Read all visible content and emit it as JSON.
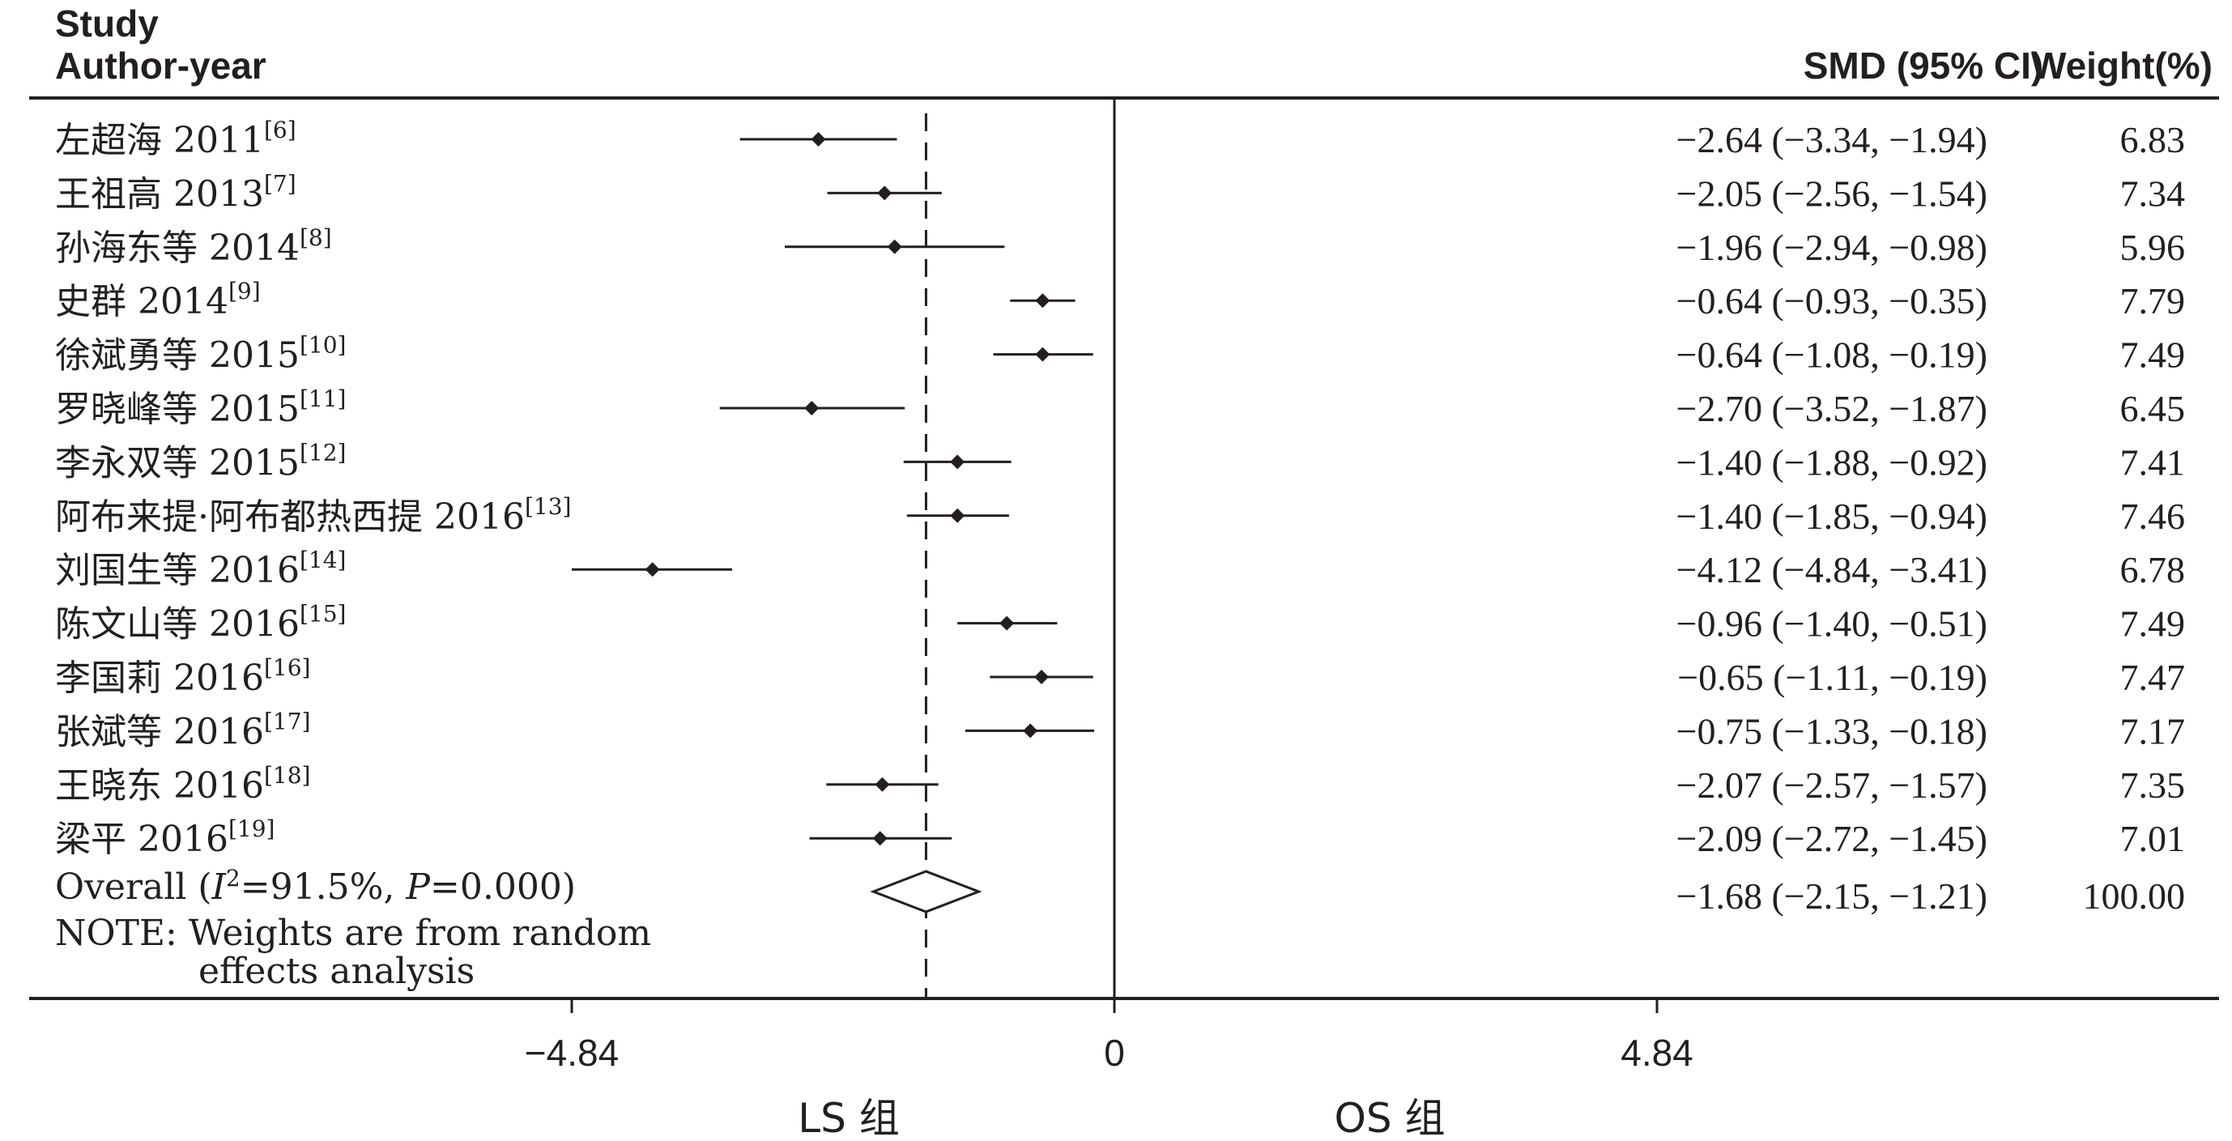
{
  "chart_data": {
    "type": "forest",
    "header": {
      "study_line1": "Study",
      "study_line2": "Author-year",
      "effect_col": "SMD (95% CI)",
      "weight_col": "Weight(%)"
    },
    "studies": [
      {
        "label": "左超海 2011",
        "ref": "[6]",
        "smd": -2.64,
        "lo": -3.34,
        "hi": -1.94,
        "ci_text": "−2.64 (−3.34, −1.94)",
        "weight": "6.83"
      },
      {
        "label": "王祖高 2013",
        "ref": "[7]",
        "smd": -2.05,
        "lo": -2.56,
        "hi": -1.54,
        "ci_text": "−2.05 (−2.56, −1.54)",
        "weight": "7.34"
      },
      {
        "label": "孙海东等 2014",
        "ref": "[8]",
        "smd": -1.96,
        "lo": -2.94,
        "hi": -0.98,
        "ci_text": "−1.96 (−2.94, −0.98)",
        "weight": "5.96"
      },
      {
        "label": "史群 2014",
        "ref": "[9]",
        "smd": -0.64,
        "lo": -0.93,
        "hi": -0.35,
        "ci_text": "−0.64 (−0.93, −0.35)",
        "weight": "7.79"
      },
      {
        "label": "徐斌勇等 2015",
        "ref": "[10]",
        "smd": -0.64,
        "lo": -1.08,
        "hi": -0.19,
        "ci_text": "−0.64 (−1.08, −0.19)",
        "weight": "7.49"
      },
      {
        "label": "罗晓峰等 2015",
        "ref": "[11]",
        "smd": -2.7,
        "lo": -3.52,
        "hi": -1.87,
        "ci_text": "−2.70 (−3.52, −1.87)",
        "weight": "6.45"
      },
      {
        "label": "李永双等 2015",
        "ref": "[12]",
        "smd": -1.4,
        "lo": -1.88,
        "hi": -0.92,
        "ci_text": "−1.40 (−1.88, −0.92)",
        "weight": "7.41"
      },
      {
        "label": "阿布来提·阿布都热西提 2016",
        "ref": "[13]",
        "smd": -1.4,
        "lo": -1.85,
        "hi": -0.94,
        "ci_text": "−1.40 (−1.85, −0.94)",
        "weight": "7.46"
      },
      {
        "label": "刘国生等 2016",
        "ref": "[14]",
        "smd": -4.12,
        "lo": -4.84,
        "hi": -3.41,
        "ci_text": "−4.12 (−4.84, −3.41)",
        "weight": "6.78"
      },
      {
        "label": "陈文山等 2016",
        "ref": "[15]",
        "smd": -0.96,
        "lo": -1.4,
        "hi": -0.51,
        "ci_text": "−0.96 (−1.40, −0.51)",
        "weight": "7.49"
      },
      {
        "label": "李国莉 2016",
        "ref": "[16]",
        "smd": -0.65,
        "lo": -1.11,
        "hi": -0.19,
        "ci_text": "−0.65 (−1.11, −0.19)",
        "weight": "7.47"
      },
      {
        "label": "张斌等 2016",
        "ref": "[17]",
        "smd": -0.75,
        "lo": -1.33,
        "hi": -0.18,
        "ci_text": "−0.75 (−1.33, −0.18)",
        "weight": "7.17"
      },
      {
        "label": "王晓东 2016",
        "ref": "[18]",
        "smd": -2.07,
        "lo": -2.57,
        "hi": -1.57,
        "ci_text": "−2.07 (−2.57, −1.57)",
        "weight": "7.35"
      },
      {
        "label": "梁平 2016",
        "ref": "[19]",
        "smd": -2.09,
        "lo": -2.72,
        "hi": -1.45,
        "ci_text": "−2.09 (−2.72, −1.45)",
        "weight": "7.01"
      }
    ],
    "overall": {
      "label_prefix": "Overall  (",
      "i2_symbol": "I",
      "i2_exp": "2",
      "i2_value": "=91.5%, ",
      "p_symbol": "P",
      "p_value": "=0.000)",
      "smd": -1.68,
      "lo": -2.15,
      "hi": -1.21,
      "ci_text": "−1.68 (−2.15, −1.21)",
      "weight": "100.00"
    },
    "note_line1": "NOTE: Weights are from random",
    "note_line2": "effects analysis",
    "x_axis": {
      "range": [
        -4.84,
        4.84
      ],
      "ticks": [
        {
          "value": -4.84,
          "label": "−4.84"
        },
        {
          "value": 0,
          "label": "0"
        },
        {
          "value": 4.84,
          "label": "4.84"
        }
      ]
    },
    "group_labels": {
      "left": "LS 组",
      "right": "OS 组"
    },
    "reference_line": 0,
    "pooled_line": -1.68
  }
}
